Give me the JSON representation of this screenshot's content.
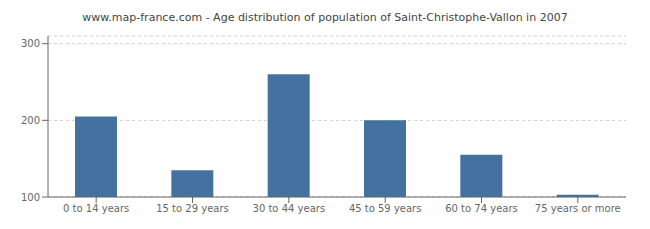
{
  "chart_data": {
    "type": "bar",
    "title": "www.map-france.com - Age distribution of population of Saint-Christophe-Vallon in 2007",
    "categories": [
      "0 to 14 years",
      "15 to 29 years",
      "30 to 44 years",
      "45 to 59 years",
      "60 to 74 years",
      "75 years or more"
    ],
    "values": [
      205,
      135,
      260,
      200,
      155,
      103
    ],
    "color": "#4472a0",
    "ylim": [
      100,
      310
    ],
    "yticks": [
      100,
      200,
      300
    ],
    "grid": true
  }
}
